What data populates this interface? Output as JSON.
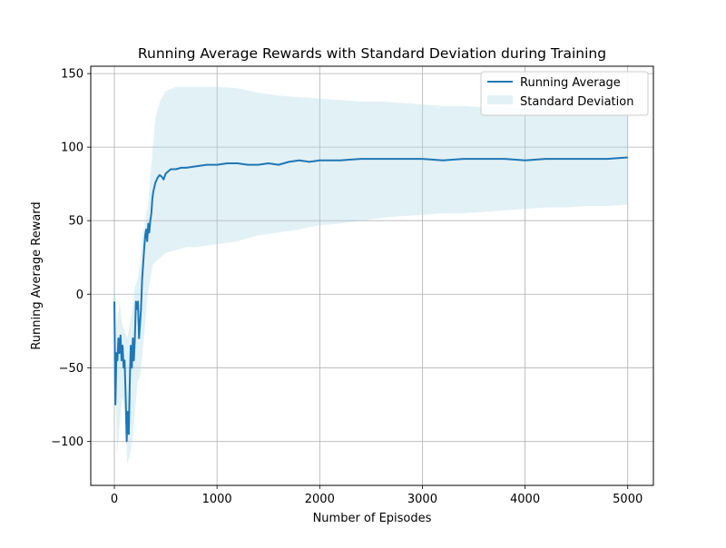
{
  "chart_data": {
    "type": "line",
    "title": "Running Average Rewards with Standard Deviation during Training",
    "xlabel": "Number of Episodes",
    "ylabel": "Running Average Reward",
    "xlim": [
      -230,
      5250
    ],
    "ylim": [
      -130,
      155
    ],
    "xticks": [
      0,
      1000,
      2000,
      3000,
      4000,
      5000
    ],
    "yticks": [
      -100,
      -50,
      0,
      50,
      100,
      150
    ],
    "xtick_labels": [
      "0",
      "1000",
      "2000",
      "3000",
      "4000",
      "5000"
    ],
    "ytick_labels": [
      "−100",
      "−50",
      "0",
      "50",
      "100",
      "150"
    ],
    "grid": true,
    "legend_position": "top-right",
    "legend": [
      "Running Average",
      "Standard Deviation"
    ],
    "colors": {
      "line": "#1f77b4",
      "band": "#add8e6"
    },
    "series": [
      {
        "name": "Running Average",
        "kind": "line",
        "x": [
          0,
          10,
          20,
          30,
          40,
          50,
          60,
          70,
          80,
          90,
          100,
          110,
          120,
          130,
          140,
          150,
          160,
          170,
          180,
          190,
          200,
          210,
          220,
          230,
          240,
          250,
          260,
          270,
          280,
          290,
          300,
          310,
          320,
          330,
          340,
          350,
          360,
          370,
          380,
          400,
          420,
          440,
          460,
          480,
          500,
          550,
          600,
          650,
          700,
          800,
          900,
          1000,
          1100,
          1200,
          1300,
          1400,
          1500,
          1600,
          1700,
          1800,
          1900,
          2000,
          2200,
          2400,
          2600,
          2800,
          3000,
          3200,
          3400,
          3600,
          3800,
          4000,
          4200,
          4400,
          4600,
          4800,
          5000
        ],
        "values": [
          -5,
          -75,
          -40,
          -45,
          -30,
          -40,
          -28,
          -45,
          -35,
          -50,
          -45,
          -70,
          -100,
          -80,
          -95,
          -60,
          -35,
          -50,
          -30,
          -45,
          -30,
          -5,
          -10,
          -5,
          -30,
          -20,
          -10,
          10,
          20,
          30,
          40,
          44,
          36,
          48,
          42,
          50,
          55,
          65,
          70,
          76,
          79,
          81,
          80,
          78,
          82,
          85,
          85,
          86,
          86,
          87,
          88,
          88,
          89,
          89,
          88,
          88,
          89,
          88,
          90,
          91,
          90,
          91,
          91,
          92,
          92,
          92,
          92,
          91,
          92,
          92,
          92,
          91,
          92,
          92,
          92,
          92,
          93
        ]
      },
      {
        "name": "Standard Deviation",
        "kind": "band",
        "x": [
          0,
          25,
          50,
          75,
          100,
          125,
          150,
          175,
          200,
          225,
          250,
          275,
          300,
          325,
          350,
          375,
          400,
          450,
          500,
          600,
          700,
          800,
          1000,
          1200,
          1400,
          1600,
          1800,
          2000,
          2200,
          2400,
          2600,
          2800,
          3000,
          3200,
          3400,
          3600,
          3800,
          4000,
          4200,
          4400,
          4600,
          4800,
          5000
        ],
        "upper": [
          10,
          -20,
          -5,
          -20,
          -25,
          -30,
          -20,
          -10,
          5,
          10,
          20,
          40,
          50,
          60,
          80,
          100,
          120,
          132,
          138,
          141,
          141,
          141,
          141,
          140,
          137,
          135,
          134,
          133,
          132,
          131,
          131,
          130,
          129,
          128,
          128,
          127,
          127,
          126,
          126,
          125,
          125,
          124,
          124
        ],
        "lower": [
          -20,
          -110,
          -90,
          -70,
          -75,
          -115,
          -110,
          -100,
          -80,
          -60,
          -56,
          -40,
          -20,
          0,
          10,
          20,
          22,
          25,
          28,
          30,
          32,
          32,
          34,
          36,
          40,
          42,
          44,
          47,
          48,
          50,
          52,
          53,
          54,
          55,
          55,
          56,
          57,
          58,
          59,
          59,
          60,
          60,
          61
        ]
      }
    ]
  }
}
